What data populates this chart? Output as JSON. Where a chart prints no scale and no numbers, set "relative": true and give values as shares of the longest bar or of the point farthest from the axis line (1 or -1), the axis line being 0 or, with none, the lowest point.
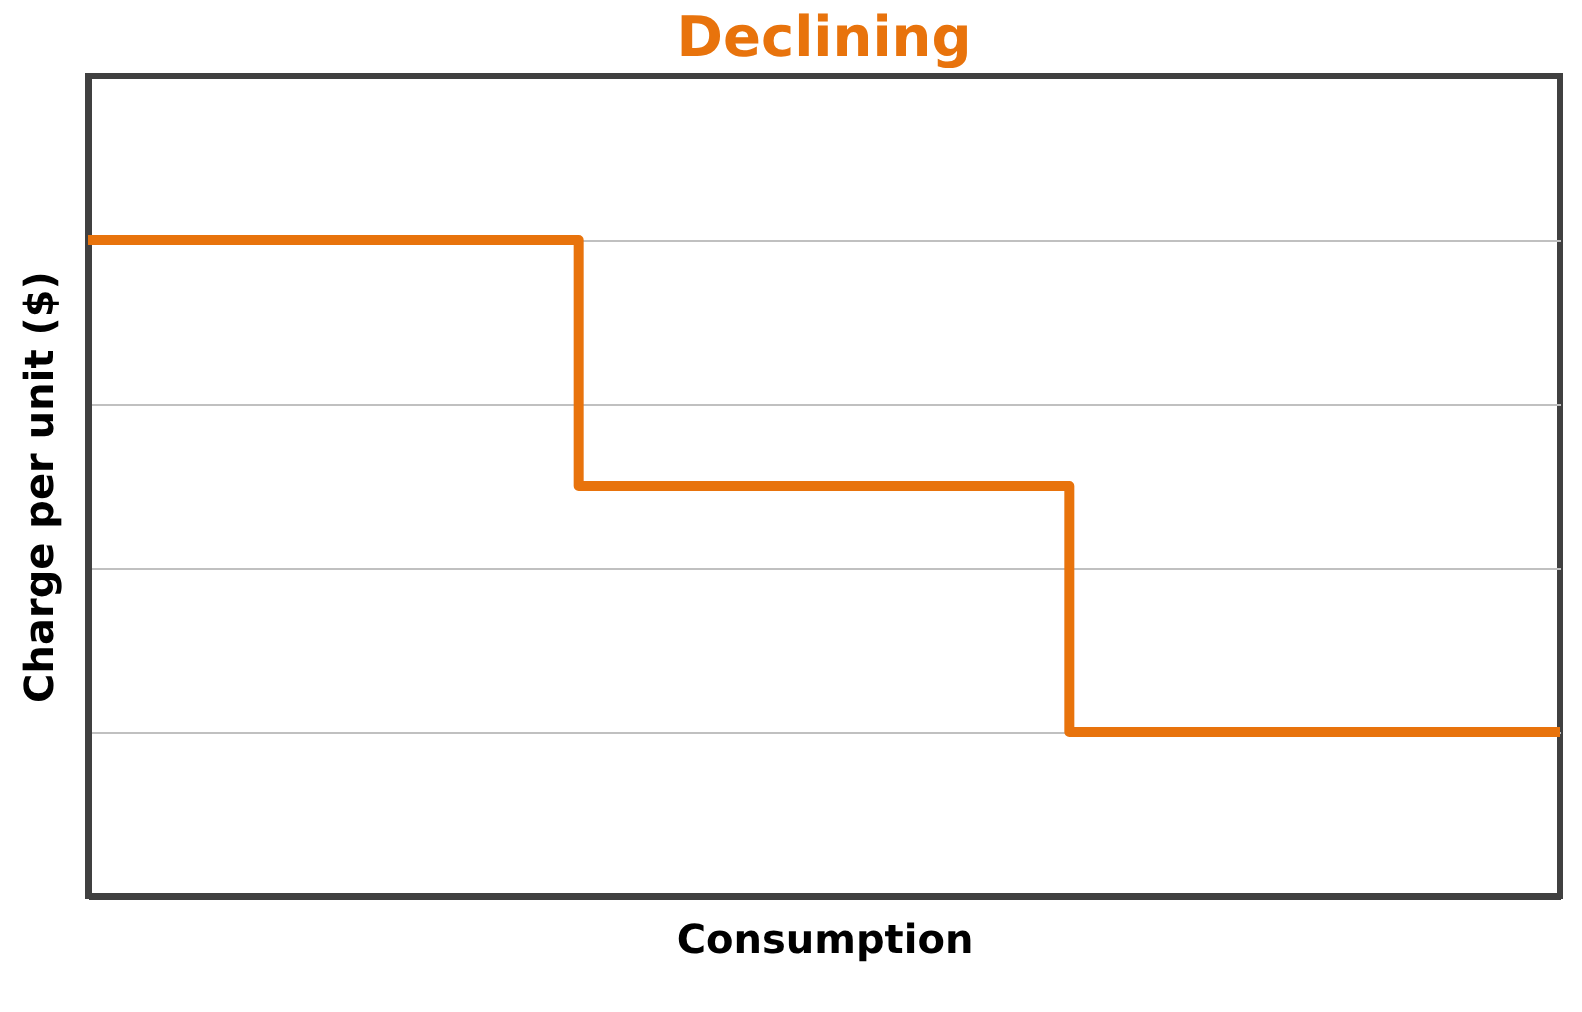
{
  "chart_data": {
    "type": "step",
    "title": "Declining",
    "xlabel": "Consumption",
    "ylabel": "Charge per unit ($)",
    "categories": [
      null,
      null,
      null,
      null
    ],
    "relative": true,
    "grid": "y",
    "legend": false,
    "series": [
      {
        "color": "#e8730c",
        "values": [
          1,
          0.625,
          0.25,
          0.25
        ]
      }
    ]
  }
}
